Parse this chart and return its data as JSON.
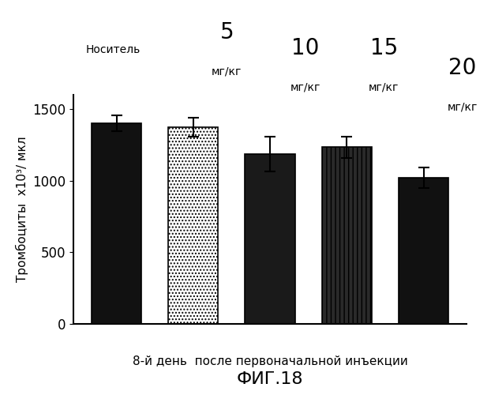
{
  "values": [
    1400,
    1375,
    1185,
    1235,
    1020
  ],
  "errors": [
    55,
    65,
    120,
    75,
    70
  ],
  "bar_colors": [
    "#111111",
    "#ffffff",
    "#1a1a1a",
    "#2a2a2a",
    "#111111"
  ],
  "bar_edgecolors": [
    "#000000",
    "#000000",
    "#000000",
    "#000000",
    "#000000"
  ],
  "bar_hatches": [
    null,
    "....",
    null,
    "|||",
    null
  ],
  "ylabel_line1": "Тромбоциты  ѓ1о³/ мкл",
  "xlabel": "8-й день  после первоначальной инъекции",
  "title": "ФИГ.18",
  "label_carrier": "Носитель",
  "label_5": "5",
  "label_10": "10",
  "label_15": "15",
  "label_20": "20",
  "label_mgkg": "мг/кг",
  "ylim": [
    0,
    1600
  ],
  "yticks": [
    0,
    500,
    1000,
    1500
  ],
  "figsize": [
    6.22,
    5.0
  ],
  "dpi": 100
}
